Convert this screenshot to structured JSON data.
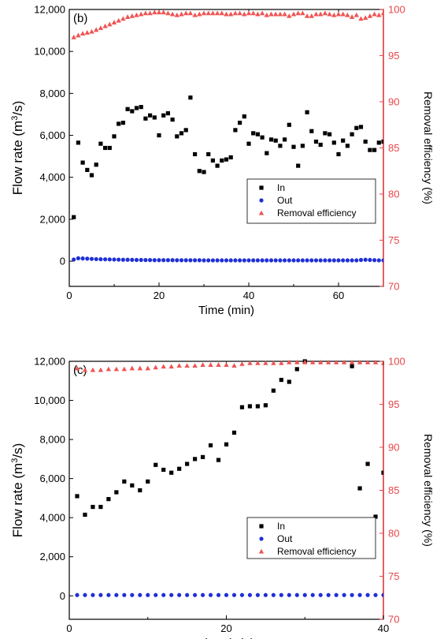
{
  "chart_data": [
    {
      "type": "scatter",
      "panel_label": "(b)",
      "xlabel": "Time (min)",
      "ylabel_left_main": "Flow rate (m",
      "ylabel_left_sup": "3",
      "ylabel_left_tail": "/s)",
      "ylabel_right": "Removal efficiency (%)",
      "xlim": [
        0,
        70
      ],
      "ylim_left": [
        -1200,
        12000
      ],
      "ylim_right": [
        70,
        100
      ],
      "x_ticks": [
        0,
        20,
        40,
        60
      ],
      "y_left_ticks": [
        0,
        2000,
        4000,
        6000,
        8000,
        10000,
        12000
      ],
      "y_left_tick_labels": [
        "0",
        "2,000",
        "4,000",
        "6,000",
        "8,000",
        "10,000",
        "12,000"
      ],
      "y_right_ticks": [
        70,
        75,
        80,
        85,
        90,
        95,
        100
      ],
      "legend": [
        "In",
        "Out",
        "Removal efficiency"
      ],
      "legend_position": "right-center",
      "series": [
        {
          "name": "In",
          "axis": "left",
          "marker": "square",
          "color": "#000000",
          "x": [
            1,
            2,
            3,
            4,
            5,
            6,
            7,
            8,
            9,
            10,
            11,
            12,
            13,
            14,
            15,
            16,
            17,
            18,
            19,
            20,
            21,
            22,
            23,
            24,
            25,
            26,
            27,
            28,
            29,
            30,
            31,
            32,
            33,
            34,
            35,
            36,
            37,
            38,
            39,
            40,
            41,
            42,
            43,
            44,
            45,
            46,
            47,
            48,
            49,
            50,
            51,
            52,
            53,
            54,
            55,
            56,
            57,
            58,
            59,
            60,
            61,
            62,
            63,
            64,
            65,
            66,
            67,
            68,
            69,
            70
          ],
          "y": [
            2100,
            5650,
            4700,
            4350,
            4100,
            4600,
            5600,
            5400,
            5400,
            5950,
            6550,
            6600,
            7250,
            7150,
            7300,
            7350,
            6800,
            6950,
            6850,
            6000,
            6950,
            7050,
            6750,
            5950,
            6100,
            6250,
            7800,
            5100,
            4300,
            4250,
            5100,
            4800,
            4550,
            4800,
            4850,
            4950,
            6250,
            6600,
            6900,
            5600,
            6100,
            6050,
            5900,
            5150,
            5800,
            5750,
            5500,
            5800,
            6500,
            5450,
            4550,
            5500,
            7100,
            6200,
            5700,
            5550,
            6100,
            6050,
            5650,
            5100,
            5750,
            5500,
            6050,
            6350,
            6400,
            5700,
            5300,
            5300,
            5650,
            5700
          ]
        },
        {
          "name": "Out",
          "axis": "left",
          "marker": "circle",
          "color": "#1f2fd6",
          "x": [
            1,
            2,
            3,
            4,
            5,
            6,
            7,
            8,
            9,
            10,
            11,
            12,
            13,
            14,
            15,
            16,
            17,
            18,
            19,
            20,
            21,
            22,
            23,
            24,
            25,
            26,
            27,
            28,
            29,
            30,
            31,
            32,
            33,
            34,
            35,
            36,
            37,
            38,
            39,
            40,
            41,
            42,
            43,
            44,
            45,
            46,
            47,
            48,
            49,
            50,
            51,
            52,
            53,
            54,
            55,
            56,
            57,
            58,
            59,
            60,
            61,
            62,
            63,
            64,
            65,
            66,
            67,
            68,
            69,
            70
          ],
          "y": [
            80,
            140,
            130,
            120,
            110,
            100,
            95,
            90,
            85,
            80,
            75,
            70,
            70,
            65,
            60,
            60,
            55,
            55,
            50,
            50,
            50,
            50,
            50,
            45,
            45,
            45,
            45,
            45,
            45,
            40,
            40,
            40,
            40,
            40,
            40,
            40,
            40,
            40,
            40,
            40,
            40,
            40,
            40,
            40,
            40,
            40,
            40,
            40,
            40,
            40,
            40,
            40,
            40,
            40,
            40,
            40,
            40,
            40,
            40,
            40,
            40,
            40,
            40,
            40,
            60,
            70,
            60,
            50,
            40,
            40
          ]
        },
        {
          "name": "Removal efficiency",
          "axis": "right",
          "marker": "triangle",
          "color": "#f05454",
          "x": [
            1,
            2,
            3,
            4,
            5,
            6,
            7,
            8,
            9,
            10,
            11,
            12,
            13,
            14,
            15,
            16,
            17,
            18,
            19,
            20,
            21,
            22,
            23,
            24,
            25,
            26,
            27,
            28,
            29,
            30,
            31,
            32,
            33,
            34,
            35,
            36,
            37,
            38,
            39,
            40,
            41,
            42,
            43,
            44,
            45,
            46,
            47,
            48,
            49,
            50,
            51,
            52,
            53,
            54,
            55,
            56,
            57,
            58,
            59,
            60,
            61,
            62,
            63,
            64,
            65,
            66,
            67,
            68,
            69,
            70
          ],
          "y": [
            97.0,
            97.2,
            97.4,
            97.5,
            97.6,
            97.8,
            98.0,
            98.2,
            98.4,
            98.6,
            98.8,
            99.0,
            99.2,
            99.3,
            99.4,
            99.5,
            99.6,
            99.6,
            99.7,
            99.7,
            99.7,
            99.6,
            99.5,
            99.4,
            99.5,
            99.6,
            99.6,
            99.4,
            99.5,
            99.6,
            99.6,
            99.6,
            99.6,
            99.6,
            99.5,
            99.5,
            99.6,
            99.6,
            99.5,
            99.6,
            99.6,
            99.5,
            99.6,
            99.4,
            99.5,
            99.5,
            99.5,
            99.5,
            99.3,
            99.5,
            99.6,
            99.6,
            99.3,
            99.3,
            99.5,
            99.5,
            99.6,
            99.5,
            99.4,
            99.5,
            99.5,
            99.4,
            99.2,
            99.4,
            99.0,
            99.1,
            99.3,
            99.5,
            99.4,
            99.6
          ]
        }
      ]
    },
    {
      "type": "scatter",
      "panel_label": "(c)",
      "xlabel": "Time (min)",
      "ylabel_left_main": "Flow rate (m",
      "ylabel_left_sup": "3",
      "ylabel_left_tail": "/s)",
      "ylabel_right": "Removal efficiency (%)",
      "xlim": [
        0,
        40
      ],
      "ylim_left": [
        -1200,
        12000
      ],
      "ylim_right": [
        70,
        100
      ],
      "x_ticks": [
        0,
        20,
        40
      ],
      "y_left_ticks": [
        0,
        2000,
        4000,
        6000,
        8000,
        10000,
        12000
      ],
      "y_left_tick_labels": [
        "0",
        "2,000",
        "4,000",
        "6,000",
        "8,000",
        "10,000",
        "12,000"
      ],
      "y_right_ticks": [
        70,
        75,
        80,
        85,
        90,
        95,
        100
      ],
      "legend": [
        "In",
        "Out",
        "Removal efficiency"
      ],
      "legend_position": "lower-right",
      "series": [
        {
          "name": "In",
          "axis": "left",
          "marker": "square",
          "color": "#000000",
          "x": [
            1,
            2,
            3,
            4,
            5,
            6,
            7,
            8,
            9,
            10,
            11,
            12,
            13,
            14,
            15,
            16,
            17,
            18,
            19,
            20,
            21,
            22,
            23,
            24,
            25,
            26,
            27,
            28,
            29,
            30,
            36,
            37,
            38,
            39,
            40
          ],
          "y": [
            5100,
            4150,
            4550,
            4550,
            4950,
            5300,
            5850,
            5650,
            5400,
            5850,
            6700,
            6450,
            6300,
            6500,
            6750,
            7000,
            7100,
            7700,
            6950,
            7750,
            8350,
            9650,
            9700,
            9700,
            9750,
            10500,
            11050,
            10950,
            11600,
            12000,
            11750,
            5500,
            6750,
            4050,
            6300
          ]
        },
        {
          "name": "Out",
          "axis": "left",
          "marker": "circle",
          "color": "#1f2fd6",
          "x": [
            1,
            2,
            3,
            4,
            5,
            6,
            7,
            8,
            9,
            10,
            11,
            12,
            13,
            14,
            15,
            16,
            17,
            18,
            19,
            20,
            21,
            22,
            23,
            24,
            25,
            26,
            27,
            28,
            29,
            30,
            31,
            32,
            33,
            34,
            35,
            36,
            37,
            38,
            39,
            40
          ],
          "y": [
            40,
            40,
            40,
            40,
            40,
            40,
            40,
            40,
            40,
            40,
            40,
            40,
            40,
            40,
            40,
            40,
            40,
            40,
            40,
            40,
            40,
            40,
            40,
            40,
            40,
            40,
            40,
            40,
            40,
            40,
            40,
            40,
            40,
            40,
            40,
            40,
            40,
            40,
            40,
            40
          ]
        },
        {
          "name": "Removal efficiency",
          "axis": "right",
          "marker": "triangle",
          "color": "#f05454",
          "x": [
            1,
            2,
            3,
            4,
            5,
            6,
            7,
            8,
            9,
            10,
            11,
            12,
            13,
            14,
            15,
            16,
            17,
            18,
            19,
            20,
            21,
            22,
            23,
            24,
            25,
            26,
            27,
            28,
            29,
            30,
            31,
            32,
            33,
            34,
            35,
            36,
            37,
            38,
            39,
            40
          ],
          "y": [
            99.2,
            99.0,
            99.0,
            99.0,
            99.1,
            99.1,
            99.1,
            99.2,
            99.2,
            99.2,
            99.3,
            99.4,
            99.4,
            99.5,
            99.5,
            99.5,
            99.6,
            99.6,
            99.6,
            99.6,
            99.5,
            99.7,
            99.8,
            99.8,
            99.8,
            99.8,
            99.8,
            99.9,
            99.9,
            99.9,
            99.9,
            99.9,
            99.9,
            99.9,
            99.9,
            99.9,
            99.9,
            99.9,
            99.9,
            99.8
          ]
        }
      ]
    }
  ]
}
